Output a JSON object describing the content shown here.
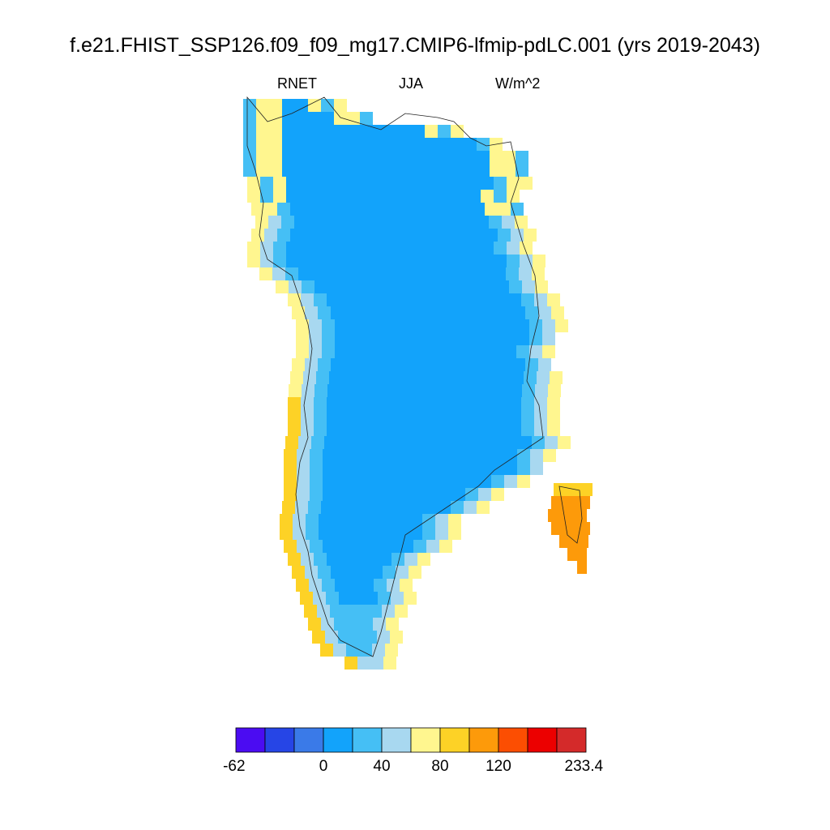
{
  "title": "f.e21.FHIST_SSP126.f09_f09_mg17.CMIP6-lfmip-pdLC.001 (yrs 2019-2043)",
  "left_label": "RNET",
  "center_label": "JJA",
  "right_label": "W/m^2",
  "colorbar": {
    "colors": [
      "#4b0cf2",
      "#2645e6",
      "#3a7ae8",
      "#12a3fb",
      "#45bff5",
      "#a8d8f0",
      "#fff68f",
      "#fdd226",
      "#fd9a0a",
      "#fc4e02",
      "#ec0000",
      "#d42a2a"
    ],
    "tick_labels": [
      "-62",
      "0",
      "40",
      "80",
      "120",
      "233.4"
    ]
  },
  "map_data": {
    "variable": "RNET",
    "season": "JJA",
    "units": "W/m^2",
    "region": "Greenland",
    "interior_class": 3,
    "coastal_ring_classes": [
      4,
      5,
      6,
      7,
      8
    ]
  }
}
